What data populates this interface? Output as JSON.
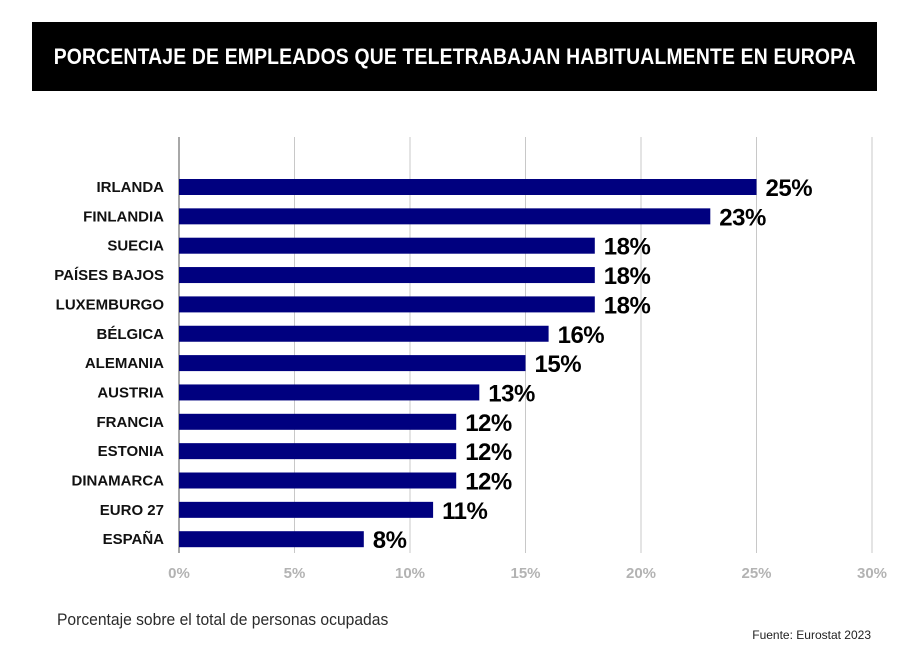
{
  "header": {
    "title": "PORCENTAJE DE EMPLEADOS QUE TELETRABAJAN HABITUALMENTE EN EUROPA"
  },
  "footer": {
    "note": "Porcentaje sobre el total de personas ocupadas",
    "source": "Fuente: Eurostat 2023"
  },
  "colors": {
    "bar": "#00007f",
    "grid": "#c8c8c8",
    "axis_line": "#8c8c8c",
    "tick_label": "#b3b3b3"
  },
  "chart_data": {
    "type": "bar",
    "orientation": "horizontal",
    "title": "PORCENTAJE DE EMPLEADOS QUE TELETRABAJAN HABITUALMENTE EN EUROPA",
    "categories": [
      "IRLANDA",
      "FINLANDIA",
      "SUECIA",
      "PAÍSES BAJOS",
      "LUXEMBURGO",
      "BÉLGICA",
      "ALEMANIA",
      "AUSTRIA",
      "FRANCIA",
      "ESTONIA",
      "DINAMARCA",
      "EURO 27",
      "ESPAÑA"
    ],
    "values": [
      25,
      23,
      18,
      18,
      18,
      16,
      15,
      13,
      12,
      12,
      12,
      11,
      8
    ],
    "data_labels": [
      "25%",
      "23%",
      "18%",
      "18%",
      "18%",
      "16%",
      "15%",
      "13%",
      "12%",
      "12%",
      "12%",
      "11%",
      "8%"
    ],
    "xlim": [
      0,
      30
    ],
    "x_ticks": [
      0,
      5,
      10,
      15,
      20,
      25,
      30
    ],
    "x_tick_labels": [
      "0%",
      "5%",
      "10%",
      "15%",
      "20%",
      "25%",
      "30%"
    ],
    "xlabel": "",
    "ylabel": "",
    "grid": "vertical",
    "legend": "none"
  }
}
